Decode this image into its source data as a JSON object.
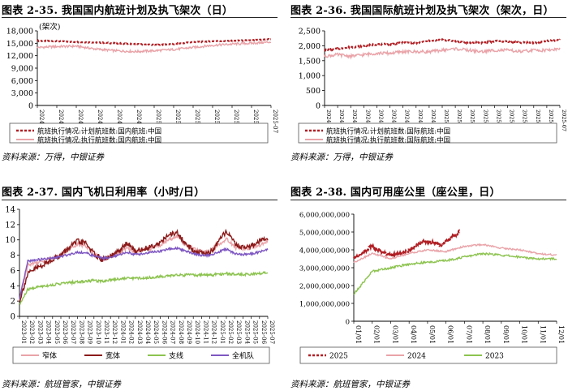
{
  "source_wind": "资料来源：万得，中银证券",
  "source_flight": "资料来源：航班管家，中银证券",
  "colors": {
    "dark_red": "#b01e23",
    "pink": "#e9a3a8",
    "maroon": "#8b1a1a",
    "green": "#8cc34f",
    "purple": "#7e57c2"
  },
  "chart_data": [
    {
      "id": "c35",
      "type": "line",
      "title": "图表 2-35. 我国国内航班计划及执飞架次（日）",
      "unit_label": "(架次)",
      "ylim": [
        0,
        18000
      ],
      "yticks": [
        "0",
        "3,000",
        "6,000",
        "9,000",
        "12,000",
        "15,000",
        "18,000"
      ],
      "x_tick_labels": [
        "2024-07",
        "2024-08",
        "2024-09",
        "2024-10",
        "2024-11",
        "2024-12",
        "2025-01",
        "2025-02",
        "2025-03",
        "2025-04",
        "2025-05",
        "2025-06",
        "2025-07"
      ],
      "series": [
        {
          "name": "航班执行情况:计划航班数:国内航班:中国",
          "values": [
            15600,
            15500,
            15300,
            15200,
            15000,
            14800,
            14600,
            14800,
            15300,
            15500,
            15600,
            15700,
            16000
          ],
          "style": "dashed",
          "color_key": "dark_red"
        },
        {
          "name": "航班执行情况:执行航班数:国内航班:中国",
          "values": [
            14000,
            14200,
            14300,
            13600,
            13200,
            13000,
            13200,
            13500,
            14000,
            14500,
            14800,
            15000,
            15300
          ],
          "style": "solid",
          "color_key": "pink"
        }
      ]
    },
    {
      "id": "c36",
      "type": "line",
      "title": "图表 2-36. 我国国际航班计划及执飞架次（架次，日）",
      "ylim": [
        0,
        2500
      ],
      "yticks": [
        "0",
        "500",
        "1,000",
        "1,500",
        "2,000",
        "2,500"
      ],
      "x_tick_labels": [
        "2024-07",
        "2024-08",
        "2024-08",
        "2024-09",
        "2024-10",
        "2024-10",
        "2024-11",
        "2024-12",
        "2024-12",
        "2025-01",
        "2025-02",
        "2025-02",
        "2025-03",
        "2025-04",
        "2025-04",
        "2025-05",
        "2025-06",
        "2025-06",
        "2025-07"
      ],
      "series": [
        {
          "name": "航班执行情况:计划航班数:国际航班:中国",
          "values": [
            1850,
            1900,
            1950,
            2000,
            2050,
            2050,
            2100,
            2100,
            2150,
            2200,
            2150,
            2100,
            2100,
            2150,
            2150,
            2100,
            2100,
            2150,
            2200
          ],
          "style": "dashed",
          "color_key": "dark_red"
        },
        {
          "name": "航班执行情况:执行航班数:国际航班:中国",
          "values": [
            1650,
            1700,
            1650,
            1700,
            1750,
            1750,
            1800,
            1800,
            1800,
            1850,
            1900,
            1850,
            1800,
            1850,
            1850,
            1800,
            1850,
            1850,
            1900
          ],
          "style": "solid",
          "color_key": "pink"
        }
      ]
    },
    {
      "id": "c37",
      "type": "line",
      "title": "图表 2-37. 国内飞机日利用率（小时/日）",
      "ylim": [
        0,
        14
      ],
      "yticks": [
        "0",
        "2",
        "4",
        "6",
        "8",
        "10",
        "12",
        "14"
      ],
      "x_tick_labels": [
        "2023-01",
        "2023-02",
        "2023-03",
        "2023-04",
        "2023-05",
        "2023-06",
        "2023-07",
        "2023-08",
        "2023-09",
        "2023-10",
        "2023-11",
        "2023-12",
        "2024-01",
        "2024-02",
        "2024-03",
        "2024-04",
        "2024-05",
        "2024-06",
        "2024-07",
        "2024-08",
        "2024-09",
        "2024-10",
        "2024-11",
        "2024-12",
        "2025-01",
        "2025-02",
        "2025-03",
        "2025-04",
        "2025-05",
        "2025-06",
        "2025-07"
      ],
      "series": [
        {
          "name": "窄体",
          "values": [
            2.0,
            6.8,
            7.0,
            7.3,
            7.7,
            8.0,
            8.8,
            9.5,
            9.2,
            8.2,
            7.5,
            7.7,
            8.2,
            9.0,
            8.4,
            8.7,
            8.9,
            9.3,
            10.0,
            10.5,
            9.5,
            8.8,
            8.5,
            8.5,
            9.3,
            10.2,
            9.0,
            8.9,
            9.0,
            9.3,
            9.8
          ],
          "color_key": "pink"
        },
        {
          "name": "宽体",
          "values": [
            2.0,
            5.5,
            6.3,
            6.8,
            7.5,
            8.0,
            9.0,
            9.8,
            9.6,
            8.2,
            7.4,
            7.8,
            8.5,
            9.6,
            8.5,
            8.8,
            9.2,
            9.6,
            10.6,
            11.0,
            9.5,
            8.6,
            8.3,
            8.3,
            9.6,
            11.2,
            9.5,
            9.0,
            9.2,
            9.8,
            10.2
          ],
          "color_key": "maroon"
        },
        {
          "name": "支线",
          "values": [
            1.5,
            3.5,
            3.8,
            4.0,
            4.1,
            4.3,
            4.4,
            4.5,
            4.6,
            4.7,
            4.6,
            4.8,
            4.9,
            5.0,
            5.0,
            5.0,
            5.1,
            5.2,
            5.3,
            5.4,
            5.4,
            5.4,
            5.4,
            5.4,
            5.5,
            5.6,
            5.5,
            5.5,
            5.5,
            5.6,
            5.8
          ],
          "color_key": "green"
        },
        {
          "name": "全机队",
          "values": [
            2.2,
            7.2,
            7.4,
            7.5,
            7.6,
            7.8,
            8.1,
            8.4,
            8.3,
            7.9,
            7.6,
            7.7,
            8.0,
            8.4,
            8.1,
            8.2,
            8.4,
            8.5,
            8.8,
            8.9,
            8.6,
            8.2,
            8.0,
            8.0,
            8.4,
            8.8,
            8.2,
            8.1,
            8.2,
            8.4,
            8.8
          ],
          "color_key": "purple"
        }
      ]
    },
    {
      "id": "c38",
      "type": "line",
      "title": "图表 2-38. 国内可用座公里（座公里，日）",
      "ylim": [
        0,
        6000000000
      ],
      "yticks": [
        "0",
        "1,000,000,000",
        "2,000,000,000",
        "3,000,000,000",
        "4,000,000,000",
        "5,000,000,000",
        "6,000,000,000"
      ],
      "x_tick_labels": [
        "01/01",
        "02/01",
        "03/01",
        "04/01",
        "05/01",
        "06/01",
        "07/01",
        "08/01",
        "09/01",
        "10/01",
        "11/01",
        "12/01"
      ],
      "series": [
        {
          "name": "2025",
          "values": [
            3500000000,
            4200000000,
            3700000000,
            3900000000,
            4500000000,
            4300000000,
            5000000000
          ],
          "style": "dashed",
          "color_key": "dark_red"
        },
        {
          "name": "2024",
          "values": [
            3300000000,
            3800000000,
            3500000000,
            3800000000,
            4000000000,
            3900000000,
            4200000000,
            4300000000,
            4100000000,
            4000000000,
            3800000000,
            3700000000
          ],
          "color_key": "pink"
        },
        {
          "name": "2023",
          "values": [
            1500000000,
            2800000000,
            3000000000,
            3200000000,
            3300000000,
            3400000000,
            3600000000,
            3800000000,
            3700000000,
            3600000000,
            3500000000,
            3500000000
          ],
          "color_key": "green"
        }
      ]
    }
  ]
}
